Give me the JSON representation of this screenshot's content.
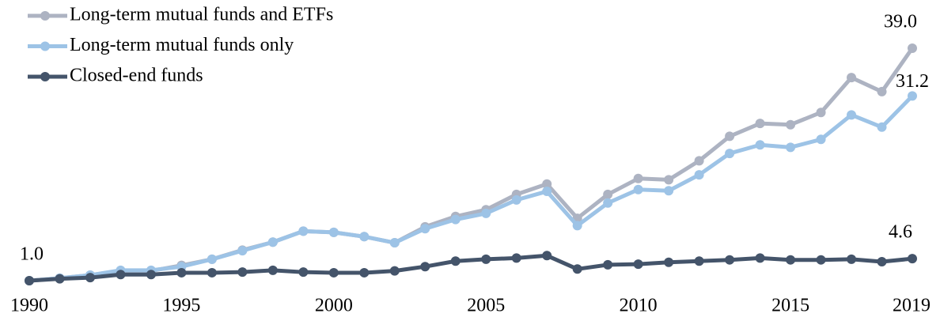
{
  "chart_data": {
    "type": "line",
    "x": [
      1990,
      1991,
      1992,
      1993,
      1994,
      1995,
      1996,
      1997,
      1998,
      1999,
      2000,
      2001,
      2002,
      2003,
      2004,
      2005,
      2006,
      2007,
      2008,
      2009,
      2010,
      2011,
      2012,
      2013,
      2014,
      2015,
      2016,
      2017,
      2018,
      2019
    ],
    "xlim": [
      1990,
      2019
    ],
    "xticks": [
      1990,
      1995,
      2000,
      2005,
      2010,
      2015,
      2019
    ],
    "legend": "top-left",
    "series": [
      {
        "name": "Long-term mutual funds and ETFs",
        "color": "#adb3c2",
        "values": [
          1.0,
          1.4,
          1.9,
          2.6,
          2.6,
          3.5,
          4.5,
          6.0,
          7.3,
          9.1,
          8.9,
          8.2,
          7.2,
          9.8,
          11.5,
          12.6,
          15.1,
          16.8,
          11.2,
          15.1,
          17.7,
          17.5,
          20.6,
          24.6,
          26.7,
          26.5,
          28.5,
          34.2,
          31.9,
          39.0
        ],
        "value_labels": [
          "1.0",
          null,
          null,
          null,
          null,
          null,
          null,
          null,
          null,
          null,
          null,
          null,
          null,
          null,
          null,
          null,
          null,
          null,
          null,
          null,
          null,
          null,
          null,
          null,
          null,
          null,
          null,
          null,
          null,
          "39.0"
        ]
      },
      {
        "name": "Long-term mutual funds only",
        "color": "#9dc3e6",
        "values": [
          1.0,
          1.4,
          1.9,
          2.7,
          2.7,
          3.3,
          4.5,
          5.9,
          7.3,
          9.1,
          8.9,
          8.2,
          7.2,
          9.5,
          11.0,
          12.0,
          14.2,
          15.6,
          10.0,
          13.7,
          15.9,
          15.7,
          18.3,
          21.8,
          23.2,
          22.8,
          24.1,
          28.1,
          26.1,
          31.2
        ],
        "value_labels": [
          null,
          null,
          null,
          null,
          null,
          null,
          null,
          null,
          null,
          null,
          null,
          null,
          null,
          null,
          null,
          null,
          null,
          null,
          null,
          null,
          null,
          null,
          null,
          null,
          null,
          null,
          null,
          null,
          null,
          "31.2"
        ]
      },
      {
        "name": "Closed-end funds",
        "color": "#44546a",
        "values": [
          1.0,
          1.3,
          1.5,
          2.0,
          2.0,
          2.3,
          2.3,
          2.4,
          2.7,
          2.4,
          2.3,
          2.3,
          2.6,
          3.3,
          4.2,
          4.5,
          4.7,
          5.1,
          2.9,
          3.6,
          3.7,
          4.0,
          4.2,
          4.4,
          4.7,
          4.4,
          4.4,
          4.5,
          4.1,
          4.6
        ],
        "value_labels": [
          null,
          null,
          null,
          null,
          null,
          null,
          null,
          null,
          null,
          null,
          null,
          null,
          null,
          null,
          null,
          null,
          null,
          null,
          null,
          null,
          null,
          null,
          null,
          null,
          null,
          null,
          null,
          null,
          null,
          "4.6"
        ]
      }
    ]
  }
}
